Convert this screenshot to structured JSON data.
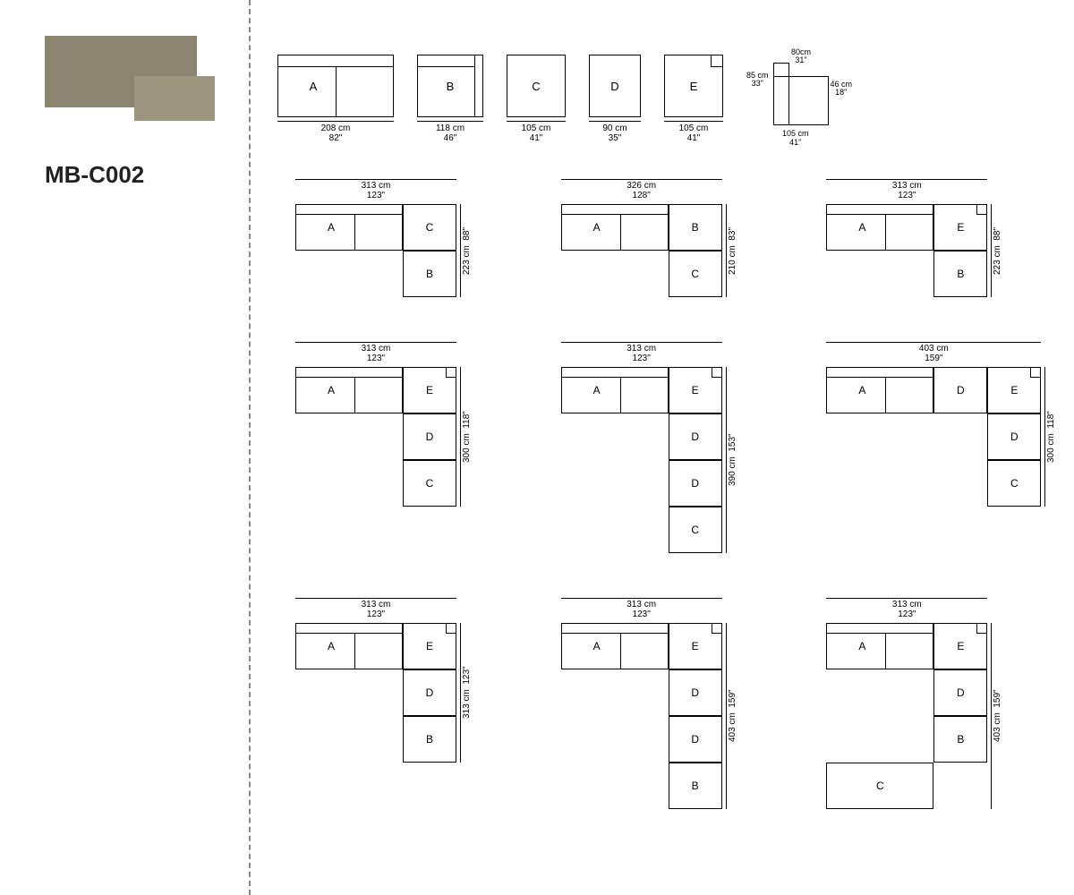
{
  "model_code": "MB-C002",
  "colors": {
    "line": "#000000",
    "bg": "#ffffff",
    "thumb": "#8a8470",
    "dash": "#888888"
  },
  "modules": {
    "A": {
      "label": "A",
      "w_cm": "208 cm",
      "w_in": "82\""
    },
    "B": {
      "label": "B",
      "w_cm": "118 cm",
      "w_in": "46\""
    },
    "C": {
      "label": "C",
      "w_cm": "105 cm",
      "w_in": "41\""
    },
    "D": {
      "label": "D",
      "w_cm": "90 cm",
      "w_in": "35\""
    },
    "E": {
      "label": "E",
      "w_cm": "105 cm",
      "w_in": "41\""
    }
  },
  "side_elev": {
    "depth_cm": "80cm",
    "depth_in": "31\"",
    "h_cm": "85 cm",
    "h_in": "33\"",
    "seat_h_cm": "46 cm",
    "seat_h_in": "18\"",
    "w_cm": "105 cm",
    "w_in": "41\""
  },
  "configs": [
    {
      "w_cm": "313 cm",
      "w_in": "123\"",
      "h_cm": "223 cm",
      "h_in": "88\"",
      "cells": [
        [
          "A",
          "C"
        ],
        [
          "",
          "B"
        ]
      ]
    },
    {
      "w_cm": "326 cm",
      "w_in": "128\"",
      "h_cm": "210 cm",
      "h_in": "83\"",
      "cells": [
        [
          "A",
          "B"
        ],
        [
          "",
          "C"
        ]
      ]
    },
    {
      "w_cm": "313 cm",
      "w_in": "123\"",
      "h_cm": "223 cm",
      "h_in": "88\"",
      "cells": [
        [
          "A",
          "E"
        ],
        [
          "",
          "B"
        ]
      ]
    },
    {
      "w_cm": "313 cm",
      "w_in": "123\"",
      "h_cm": "300 cm",
      "h_in": "118\"",
      "cells": [
        [
          "A",
          "E"
        ],
        [
          "",
          "D"
        ],
        [
          "",
          "C"
        ]
      ]
    },
    {
      "w_cm": "313 cm",
      "w_in": "123\"",
      "h_cm": "390 cm",
      "h_in": "153\"",
      "cells": [
        [
          "A",
          "E"
        ],
        [
          "",
          "D"
        ],
        [
          "",
          "D"
        ],
        [
          "",
          "C"
        ]
      ]
    },
    {
      "w_cm": "403 cm",
      "w_in": "159\"",
      "h_cm": "300 cm",
      "h_in": "118\"",
      "cells": [
        [
          "A",
          "D",
          "E"
        ],
        [
          "",
          "",
          "D"
        ],
        [
          "",
          "",
          "C"
        ]
      ]
    },
    {
      "w_cm": "313 cm",
      "w_in": "123\"",
      "h_cm": "313 cm",
      "h_in": "123\"",
      "cells": [
        [
          "A",
          "E"
        ],
        [
          "",
          "D"
        ],
        [
          "",
          "B"
        ]
      ]
    },
    {
      "w_cm": "313 cm",
      "w_in": "123\"",
      "h_cm": "403 cm",
      "h_in": "159\"",
      "cells": [
        [
          "A",
          "E"
        ],
        [
          "",
          "D"
        ],
        [
          "",
          "D"
        ],
        [
          "",
          "B"
        ]
      ]
    },
    {
      "w_cm": "313 cm",
      "w_in": "123\"",
      "h_cm": "403 cm",
      "h_in": "159\"",
      "cells": [
        [
          "A",
          "E"
        ],
        [
          "",
          "D"
        ],
        [
          "",
          "B"
        ],
        [
          "C",
          ""
        ]
      ],
      "bottom_left_c": true
    }
  ]
}
